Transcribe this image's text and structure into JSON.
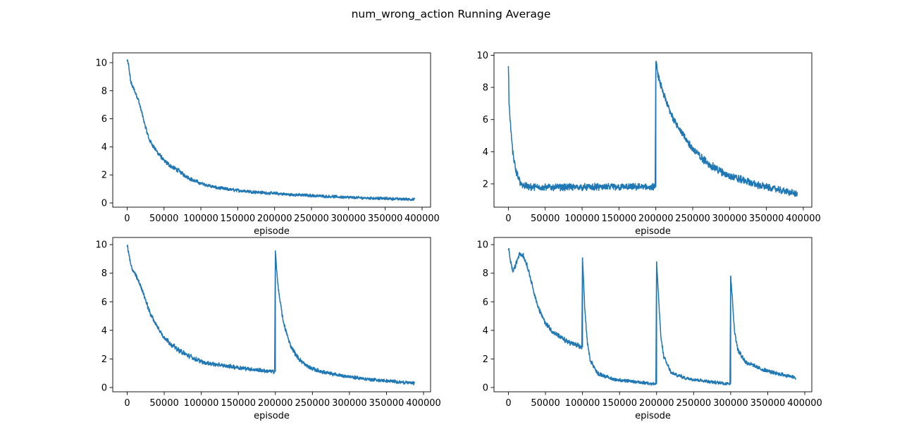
{
  "figure": {
    "title": "num_wrong_action Running Average",
    "line_color": "#1f77b4"
  },
  "chart_data": [
    {
      "type": "line",
      "title": "",
      "xlabel": "episode",
      "ylabel": "",
      "xlim": [
        -19500,
        411500
      ],
      "ylim": [
        -0.3,
        10.7
      ],
      "xticks": [
        0,
        50000,
        100000,
        150000,
        200000,
        250000,
        300000,
        350000,
        400000
      ],
      "yticks": [
        0,
        2,
        4,
        6,
        8,
        10
      ],
      "grid": false,
      "series": [
        {
          "x": [
            0,
            2000,
            5000,
            10000,
            15000,
            20000,
            25000,
            30000,
            40000,
            50000,
            60000,
            70000,
            80000,
            90000,
            100000,
            120000,
            140000,
            160000,
            180000,
            200000,
            220000,
            240000,
            260000,
            280000,
            300000,
            320000,
            340000,
            360000,
            380000,
            390000
          ],
          "values": [
            10.2,
            9.8,
            8.6,
            8.0,
            7.4,
            6.4,
            5.4,
            4.5,
            3.7,
            3.0,
            2.6,
            2.3,
            1.9,
            1.6,
            1.4,
            1.1,
            0.95,
            0.85,
            0.75,
            0.68,
            0.6,
            0.55,
            0.5,
            0.45,
            0.4,
            0.36,
            0.33,
            0.3,
            0.27,
            0.25
          ],
          "noise": 0.18
        }
      ]
    },
    {
      "type": "line",
      "title": "",
      "xlabel": "episode",
      "ylabel": "",
      "xlim": [
        -19500,
        411500
      ],
      "ylim": [
        0.55,
        10.15
      ],
      "xticks": [
        0,
        50000,
        100000,
        150000,
        200000,
        250000,
        300000,
        350000,
        400000
      ],
      "yticks": [
        2,
        4,
        6,
        8,
        10
      ],
      "grid": false,
      "series": [
        {
          "x": [
            0,
            1000,
            3000,
            6000,
            10000,
            15000,
            20000,
            30000,
            50000,
            100000,
            150000,
            199000,
            200000,
            202000,
            205000,
            210000,
            220000,
            230000,
            240000,
            250000,
            260000,
            270000,
            280000,
            290000,
            300000,
            320000,
            340000,
            360000,
            380000,
            392000
          ],
          "values": [
            9.4,
            7.0,
            5.5,
            4.0,
            2.8,
            2.2,
            1.9,
            1.8,
            1.8,
            1.8,
            1.8,
            1.8,
            9.6,
            9.0,
            8.4,
            7.6,
            6.4,
            5.6,
            4.8,
            4.2,
            3.7,
            3.3,
            3.0,
            2.7,
            2.5,
            2.2,
            1.9,
            1.7,
            1.5,
            1.35
          ],
          "noise": 0.28
        }
      ]
    },
    {
      "type": "line",
      "title": "",
      "xlabel": "episode",
      "ylabel": "",
      "xlim": [
        -19500,
        409500
      ],
      "ylim": [
        -0.3,
        10.5
      ],
      "xticks": [
        0,
        50000,
        100000,
        150000,
        200000,
        250000,
        300000,
        350000,
        400000
      ],
      "yticks": [
        0,
        2,
        4,
        6,
        8,
        10
      ],
      "grid": false,
      "series": [
        {
          "x": [
            0,
            2000,
            5000,
            10000,
            20000,
            30000,
            40000,
            50000,
            60000,
            70000,
            80000,
            100000,
            120000,
            150000,
            180000,
            199000,
            200000,
            202000,
            205000,
            210000,
            215000,
            220000,
            230000,
            240000,
            250000,
            270000,
            300000,
            330000,
            360000,
            388000
          ],
          "values": [
            10.0,
            9.4,
            8.5,
            8.0,
            6.9,
            5.3,
            4.3,
            3.5,
            3.0,
            2.6,
            2.3,
            1.8,
            1.6,
            1.4,
            1.2,
            1.1,
            9.6,
            8.0,
            6.5,
            4.8,
            3.8,
            3.0,
            2.1,
            1.6,
            1.3,
            1.0,
            0.75,
            0.55,
            0.42,
            0.3
          ],
          "noise": 0.2
        }
      ]
    },
    {
      "type": "line",
      "title": "",
      "xlabel": "episode",
      "ylabel": "",
      "xlim": [
        -19500,
        409500
      ],
      "ylim": [
        -0.3,
        10.5
      ],
      "xticks": [
        0,
        50000,
        100000,
        150000,
        200000,
        250000,
        300000,
        350000,
        400000
      ],
      "yticks": [
        0,
        2,
        4,
        6,
        8,
        10
      ],
      "grid": false,
      "series": [
        {
          "x": [
            0,
            3000,
            6000,
            10000,
            15000,
            20000,
            25000,
            30000,
            40000,
            50000,
            60000,
            70000,
            80000,
            90000,
            99000,
            100000,
            103000,
            106000,
            110000,
            120000,
            140000,
            160000,
            180000,
            199000,
            200000,
            203000,
            206000,
            210000,
            220000,
            240000,
            260000,
            280000,
            299000,
            300000,
            302000,
            305000,
            310000,
            320000,
            340000,
            360000,
            380000,
            388000
          ],
          "values": [
            9.8,
            8.8,
            8.1,
            8.6,
            9.4,
            9.2,
            8.6,
            7.6,
            5.6,
            4.5,
            3.9,
            3.5,
            3.2,
            3.0,
            2.8,
            9.1,
            5.6,
            3.4,
            2.0,
            1.0,
            0.6,
            0.45,
            0.35,
            0.25,
            8.8,
            6.0,
            3.4,
            2.1,
            1.0,
            0.65,
            0.5,
            0.35,
            0.25,
            7.8,
            6.5,
            4.0,
            2.6,
            1.8,
            1.3,
            1.0,
            0.8,
            0.7
          ],
          "noise": 0.2
        }
      ]
    }
  ]
}
